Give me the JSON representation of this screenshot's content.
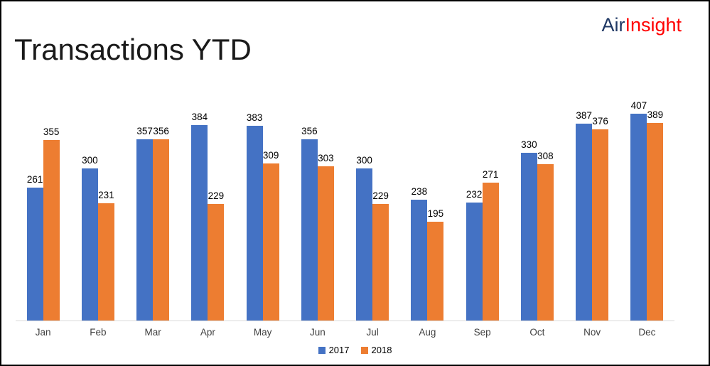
{
  "page": {
    "title": "Transactions YTD"
  },
  "logo": {
    "part1": "Air",
    "part2": "Insight",
    "part1_color": "#1F3864",
    "part2_color": "#FF0000"
  },
  "chart_data": {
    "type": "bar",
    "title": "Transactions YTD",
    "categories": [
      "Jan",
      "Feb",
      "Mar",
      "Apr",
      "May",
      "Jun",
      "Jul",
      "Aug",
      "Sep",
      "Oct",
      "Nov",
      "Dec"
    ],
    "series": [
      {
        "name": "2017",
        "color": "#4472C4",
        "values": [
          261,
          300,
          357,
          384,
          383,
          356,
          300,
          238,
          232,
          330,
          387,
          407
        ]
      },
      {
        "name": "2018",
        "color": "#ED7D31",
        "values": [
          355,
          231,
          356,
          229,
          309,
          303,
          229,
          195,
          271,
          308,
          376,
          389
        ]
      }
    ],
    "xlabel": "",
    "ylabel": "",
    "ylim": [
      0,
      450
    ],
    "grid": false,
    "data_labels": true,
    "legend_position": "bottom",
    "axis_line_color": "#D9D9D9"
  }
}
